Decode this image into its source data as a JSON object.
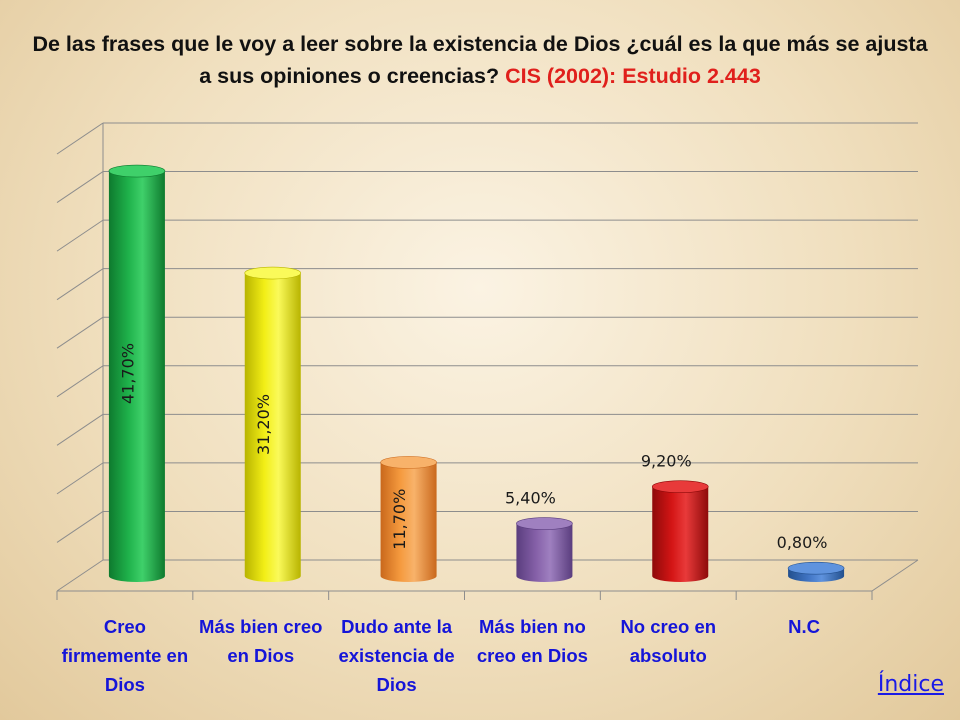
{
  "title": {
    "main": "De las frases que le voy a leer sobre la existencia de Dios ¿cuál es la que más se ajusta a sus opiniones o creencias?",
    "source": "CIS (2002): Estudio 2.443"
  },
  "chart_data": {
    "type": "bar",
    "categories": [
      "Creo firmemente en Dios",
      "Más bien creo en Dios",
      "Dudo ante la existencia de Dios",
      "Más bien no creo en Dios",
      "No creo en absoluto",
      "N.C"
    ],
    "values": [
      41.7,
      31.2,
      11.7,
      5.4,
      9.2,
      0.8
    ],
    "data_labels": [
      "41,70%",
      "31,20%",
      "11,70%",
      "5,40%",
      "9,20%",
      "0,80%"
    ],
    "ylim": [
      0,
      45
    ],
    "grid": true,
    "bar_colors": [
      "#1fb24b",
      "#f2ee16",
      "#f59a3e",
      "#8560a8",
      "#d41515",
      "#3f73c2"
    ],
    "bar_dark_colors": [
      "#0e7a2e",
      "#b8b400",
      "#c9681c",
      "#5a3d7e",
      "#8e0a0a",
      "#23508e"
    ],
    "bar_top_colors": [
      "#3fd06a",
      "#fafa5a",
      "#f8b26a",
      "#9f80c0",
      "#e83a3a",
      "#5f93de"
    ]
  },
  "nav": {
    "index_label": "Índice"
  },
  "colors": {
    "title_accent": "#e0201c",
    "category_text": "#1515d8",
    "link": "#1a1ae6"
  }
}
